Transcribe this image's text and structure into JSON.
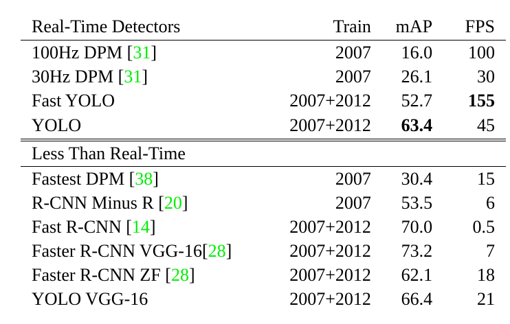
{
  "columns": {
    "name": "Real-Time Detectors",
    "train": "Train",
    "map": "mAP",
    "fps": "FPS"
  },
  "section1": [
    {
      "name": "100Hz DPM [",
      "cite": "31",
      "close": "]",
      "train": "2007",
      "map": "16.0",
      "fps": "100"
    },
    {
      "name": "30Hz DPM [",
      "cite": "31",
      "close": "]",
      "train": "2007",
      "map": "26.1",
      "fps": "30"
    },
    {
      "name": "Fast YOLO",
      "cite": "",
      "close": "",
      "train": "2007+2012",
      "map": "52.7",
      "fps": "155"
    },
    {
      "name": "YOLO",
      "cite": "",
      "close": "",
      "train": "2007+2012",
      "map": "63.4",
      "fps": "45"
    }
  ],
  "section2_title": "Less Than Real-Time",
  "section2": [
    {
      "name": "Fastest DPM [",
      "cite": "38",
      "close": "]",
      "train": "2007",
      "map": "30.4",
      "fps": "15"
    },
    {
      "name": "R-CNN Minus R [",
      "cite": "20",
      "close": "]",
      "train": "2007",
      "map": "53.5",
      "fps": "6"
    },
    {
      "name": "Fast R-CNN [",
      "cite": "14",
      "close": "]",
      "train": "2007+2012",
      "map": "70.0",
      "fps": "0.5"
    },
    {
      "name": "Faster R-CNN VGG-16[",
      "cite": "28",
      "close": "]",
      "train": "2007+2012",
      "map": "73.2",
      "fps": "7"
    },
    {
      "name": "Faster R-CNN ZF [",
      "cite": "28",
      "close": "]",
      "train": "2007+2012",
      "map": "62.1",
      "fps": "18"
    },
    {
      "name": "YOLO VGG-16",
      "cite": "",
      "close": "",
      "train": "2007+2012",
      "map": "66.4",
      "fps": "21"
    }
  ],
  "colors": {
    "citation": "#00ee00",
    "text": "#000000"
  }
}
